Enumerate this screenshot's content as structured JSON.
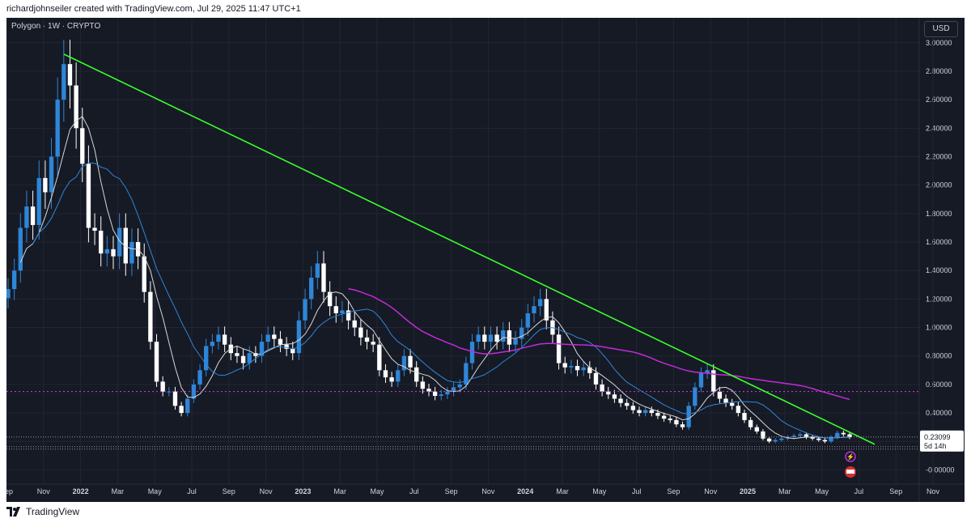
{
  "header": {
    "text": "richardjohnseiler created with TradingView.com, Jul 29, 2025 11:47 UTC+1"
  },
  "legend": {
    "symbol": "Polygon · 1W · CRYPTO"
  },
  "currency_button": "USD",
  "footer": {
    "brand": "TradingView"
  },
  "colors": {
    "background": "#161a25",
    "grid": "#232633",
    "trendline": "#3aff2c",
    "ma_slow": "#c22bd8",
    "ma_blue": "#2e86d8",
    "ma_white": "#d8d8d8",
    "hline": "#d040d8",
    "up": "#2e86d8",
    "down": "#ffffff",
    "text": "#d1d4dc"
  },
  "chart_data": {
    "type": "candlestick",
    "timeframe": "1W",
    "x_tick_labels": [
      "Sep",
      "Nov",
      "2022",
      "Mar",
      "May",
      "Jul",
      "Sep",
      "Nov",
      "2023",
      "Mar",
      "May",
      "Jul",
      "Sep",
      "Nov",
      "2024",
      "Mar",
      "May",
      "Jul",
      "Sep",
      "Nov",
      "2025",
      "Mar",
      "May",
      "Jul",
      "Sep",
      "Nov"
    ],
    "y_tick_labels": [
      "3.00000",
      "2.80000",
      "2.60000",
      "2.40000",
      "2.20000",
      "2.00000",
      "1.80000",
      "1.60000",
      "1.40000",
      "1.20000",
      "1.00000",
      "0.80000",
      "0.60000",
      "0.40000",
      "0.20000",
      "-0.00000"
    ],
    "ylim": [
      -0.1,
      3.05
    ],
    "last_price": {
      "value": "0.23099",
      "countdown": "5d 14h"
    },
    "horizontal_line": {
      "y": 0.55
    },
    "close_series": [
      1.27,
      1.4,
      1.7,
      1.85,
      1.72,
      2.05,
      1.95,
      2.2,
      2.6,
      2.85,
      2.7,
      2.4,
      2.15,
      1.7,
      1.68,
      1.52,
      1.55,
      1.5,
      1.7,
      1.45,
      1.6,
      1.5,
      1.25,
      0.9,
      0.62,
      0.55,
      0.55,
      0.45,
      0.4,
      0.5,
      0.6,
      0.7,
      0.87,
      0.9,
      0.95,
      0.88,
      0.82,
      0.8,
      0.75,
      0.82,
      0.8,
      0.9,
      0.95,
      0.92,
      0.88,
      0.85,
      0.82,
      1.05,
      1.2,
      1.35,
      1.45,
      1.25,
      1.15,
      1.1,
      1.12,
      1.05,
      1.0,
      0.93,
      0.9,
      0.88,
      0.7,
      0.65,
      0.62,
      0.7,
      0.8,
      0.72,
      0.62,
      0.57,
      0.55,
      0.52,
      0.53,
      0.55,
      0.58,
      0.6,
      0.75,
      0.9,
      0.95,
      0.9,
      0.95,
      0.9,
      0.98,
      0.88,
      0.92,
      1.0,
      1.1,
      1.15,
      1.2,
      1.05,
      0.95,
      0.75,
      0.72,
      0.73,
      0.7,
      0.72,
      0.68,
      0.6,
      0.55,
      0.53,
      0.5,
      0.47,
      0.45,
      0.42,
      0.4,
      0.42,
      0.4,
      0.38,
      0.36,
      0.35,
      0.32,
      0.3,
      0.45,
      0.58,
      0.68,
      0.7,
      0.55,
      0.5,
      0.47,
      0.45,
      0.4,
      0.35,
      0.3,
      0.27,
      0.22,
      0.2,
      0.21,
      0.22,
      0.23,
      0.24,
      0.25,
      0.23,
      0.22,
      0.21,
      0.2,
      0.23,
      0.26,
      0.25,
      0.23
    ]
  }
}
